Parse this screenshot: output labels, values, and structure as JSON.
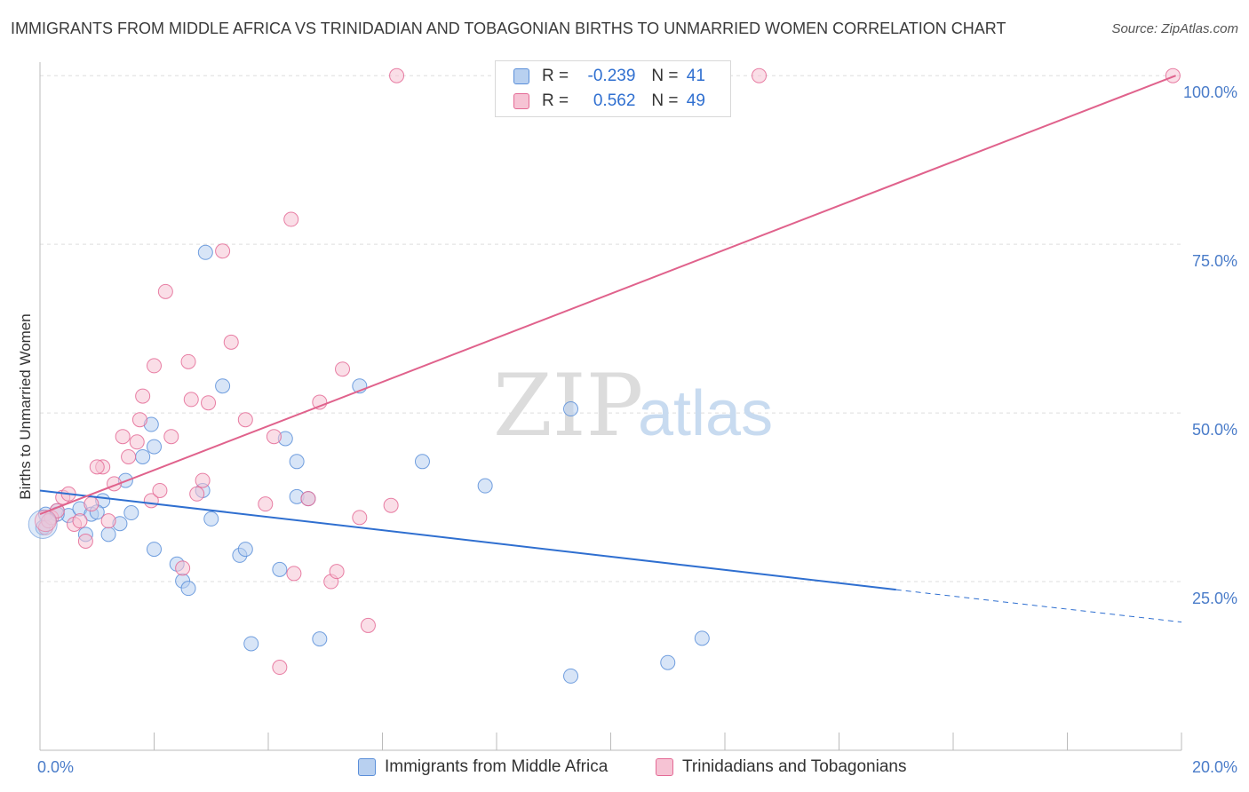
{
  "title": "IMMIGRANTS FROM MIDDLE AFRICA VS TRINIDADIAN AND TOBAGONIAN BIRTHS TO UNMARRIED WOMEN CORRELATION CHART",
  "source": "Source: ZipAtlas.com",
  "watermark": {
    "zip": "ZIP",
    "atlas": "atlas"
  },
  "colors": {
    "blue": "#5b8fd9",
    "blue_fill": "#b8d0f0",
    "pink": "#e46a95",
    "pink_fill": "#f6c3d4",
    "accent": "#4a7cc9"
  },
  "legend": {
    "rows": [
      {
        "r_label": "R =",
        "r_value": "-0.239",
        "n_label": "N =",
        "n_value": "41"
      },
      {
        "r_label": "R =",
        "r_value": "0.562",
        "n_label": "N =",
        "n_value": "49"
      }
    ]
  },
  "bottom_legend": {
    "series1": "Immigrants from Middle Africa",
    "series2": "Trinidadians and Tobagonians"
  },
  "chart_data": {
    "type": "scatter",
    "xlabel": "",
    "ylabel": "Births to Unmarried Women",
    "xlim": [
      0,
      20
    ],
    "ylim": [
      0,
      102
    ],
    "x_tick_labels": {
      "min": "0.0%",
      "max": "20.0%"
    },
    "y_ticks": [
      25,
      50,
      75,
      100
    ],
    "y_tick_labels": [
      "25.0%",
      "50.0%",
      "75.0%",
      "100.0%"
    ],
    "grid": true,
    "legend_position": "top-center",
    "series": [
      {
        "name": "Immigrants from Middle Africa",
        "color": "#5b8fd9",
        "trend": {
          "x0": 0,
          "y0": 38.5,
          "x1": 15.0,
          "y1": 23.8,
          "dashed_to_x": 20,
          "dashed_to_y": 19.0
        },
        "points": [
          [
            0.05,
            33.0
          ],
          [
            0.1,
            35.0
          ],
          [
            0.3,
            35.5
          ],
          [
            0.5,
            34.8
          ],
          [
            0.7,
            35.8
          ],
          [
            0.9,
            35.0
          ],
          [
            0.8,
            32.0
          ],
          [
            1.1,
            37.0
          ],
          [
            1.2,
            32.0
          ],
          [
            1.4,
            33.6
          ],
          [
            1.5,
            40.0
          ],
          [
            1.6,
            35.2
          ],
          [
            1.8,
            43.5
          ],
          [
            2.0,
            29.8
          ],
          [
            2.0,
            45.0
          ],
          [
            1.95,
            48.3
          ],
          [
            2.4,
            27.6
          ],
          [
            2.5,
            25.1
          ],
          [
            2.6,
            24.0
          ],
          [
            2.85,
            38.5
          ],
          [
            2.9,
            73.8
          ],
          [
            3.0,
            34.3
          ],
          [
            3.2,
            54.0
          ],
          [
            3.5,
            28.9
          ],
          [
            3.6,
            29.8
          ],
          [
            3.7,
            15.8
          ],
          [
            4.2,
            26.8
          ],
          [
            4.3,
            46.2
          ],
          [
            4.5,
            42.8
          ],
          [
            4.5,
            37.6
          ],
          [
            4.7,
            37.3
          ],
          [
            4.9,
            16.5
          ],
          [
            5.6,
            54.0
          ],
          [
            6.7,
            42.8
          ],
          [
            7.8,
            39.2
          ],
          [
            9.3,
            50.6
          ],
          [
            9.3,
            11.0
          ],
          [
            11.0,
            13.0
          ],
          [
            11.6,
            16.6
          ],
          [
            0.3,
            35.0
          ],
          [
            1.0,
            35.3
          ]
        ]
      },
      {
        "name": "Trinidadians and Tobagonians",
        "color": "#e46a95",
        "trend": {
          "x0": 0,
          "y0": 35.0,
          "x1": 19.9,
          "y1": 100.0
        },
        "points": [
          [
            0.1,
            33.0
          ],
          [
            0.2,
            34.5
          ],
          [
            0.4,
            37.5
          ],
          [
            0.5,
            38.0
          ],
          [
            0.6,
            33.5
          ],
          [
            0.7,
            34.0
          ],
          [
            0.8,
            31.0
          ],
          [
            0.9,
            36.5
          ],
          [
            1.1,
            42.0
          ],
          [
            1.2,
            34.0
          ],
          [
            1.3,
            39.5
          ],
          [
            1.45,
            46.5
          ],
          [
            1.55,
            43.5
          ],
          [
            1.7,
            45.7
          ],
          [
            1.75,
            49.0
          ],
          [
            1.8,
            52.5
          ],
          [
            1.95,
            37.0
          ],
          [
            2.0,
            57.0
          ],
          [
            2.1,
            38.5
          ],
          [
            2.2,
            68.0
          ],
          [
            2.3,
            46.5
          ],
          [
            2.5,
            27.0
          ],
          [
            2.6,
            57.6
          ],
          [
            2.65,
            52.0
          ],
          [
            2.75,
            38.0
          ],
          [
            2.85,
            40.0
          ],
          [
            2.95,
            51.5
          ],
          [
            3.2,
            74.0
          ],
          [
            3.35,
            60.5
          ],
          [
            3.6,
            49.0
          ],
          [
            3.95,
            36.5
          ],
          [
            4.1,
            46.5
          ],
          [
            4.2,
            12.3
          ],
          [
            4.4,
            78.7
          ],
          [
            4.45,
            26.2
          ],
          [
            4.7,
            37.3
          ],
          [
            4.9,
            51.6
          ],
          [
            5.1,
            25.0
          ],
          [
            5.2,
            26.5
          ],
          [
            5.3,
            56.5
          ],
          [
            5.6,
            34.5
          ],
          [
            5.75,
            18.5
          ],
          [
            6.15,
            36.3
          ],
          [
            6.25,
            100.0
          ],
          [
            12.6,
            100.0
          ],
          [
            19.85,
            100.0
          ],
          [
            1.0,
            42.0
          ],
          [
            0.3,
            35.5
          ],
          [
            0.15,
            34.0
          ]
        ]
      }
    ]
  }
}
